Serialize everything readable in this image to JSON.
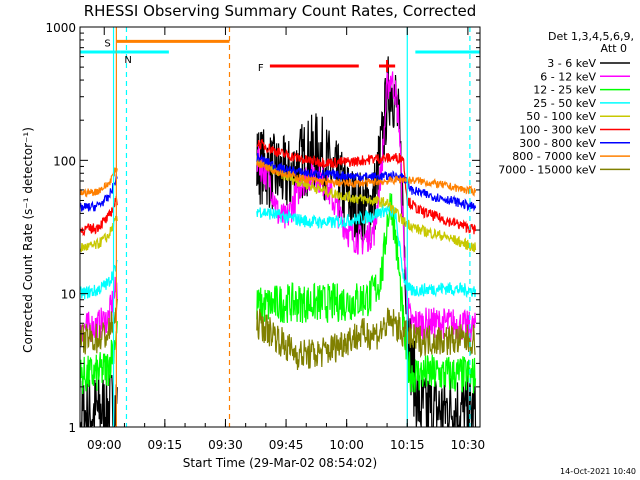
{
  "chart_data": {
    "type": "line",
    "title": "RHESSI Observing Summary Count Rates, Corrected",
    "xlabel": "Start Time (29-Mar-02 08:54:02)",
    "ylabel": "Corrected Count Rate (s⁻¹ detector⁻¹)",
    "x_unit": "minutes after 08:54:02",
    "x_ticks": [
      {
        "t": 6,
        "label": "09:00"
      },
      {
        "t": 21,
        "label": "09:15"
      },
      {
        "t": 36,
        "label": "09:30"
      },
      {
        "t": 51,
        "label": "09:45"
      },
      {
        "t": 66,
        "label": "10:00"
      },
      {
        "t": 81,
        "label": "10:15"
      },
      {
        "t": 96,
        "label": "10:30"
      }
    ],
    "xlim": [
      0,
      99
    ],
    "y_scale": "log",
    "ylim": [
      1,
      1000
    ],
    "y_ticks": [
      {
        "v": 1,
        "label": "1"
      },
      {
        "v": 10,
        "label": "10"
      },
      {
        "v": 100,
        "label": "100"
      },
      {
        "v": 1000,
        "label": "1000"
      }
    ],
    "legend": {
      "position": "right",
      "header": [
        "Det 1,3,4,5,6,9,",
        "Att 0"
      ]
    },
    "attenuator_state": {
      "segments": [
        [
          -4,
          9
        ],
        [
          10,
          22
        ],
        [
          83,
          103
        ]
      ],
      "level": 650,
      "color": "#00ffff"
    },
    "flags": [
      {
        "label": "S",
        "t0": 9,
        "t1": 37,
        "level": 780,
        "color": "#ff8000",
        "show_label": true
      },
      {
        "label": "N",
        "t0": 9,
        "t1": 10,
        "level": 650,
        "color": "#00ffff",
        "show_label": true
      },
      {
        "label": "F",
        "t0": 47,
        "t1": 69,
        "level": 510,
        "color": "#ff0000",
        "show_label": true
      },
      {
        "label": "F",
        "t0": 74,
        "t1": 78,
        "level": 510,
        "color": "#ff0000",
        "show_label": false
      }
    ],
    "vlines": [
      {
        "t": 9,
        "color": "#ff8000",
        "dash": false
      },
      {
        "t": 8.3,
        "color": "#00ffff",
        "dash": false
      },
      {
        "t": 11.5,
        "color": "#00ffff",
        "dash": true
      },
      {
        "t": 37,
        "color": "#ff8000",
        "dash": true
      },
      {
        "t": 81,
        "color": "#00ffff",
        "dash": false
      },
      {
        "t": 96.5,
        "color": "#00ffff",
        "dash": true
      }
    ],
    "series": [
      {
        "name": "3 - 6 keV",
        "color": "#000000",
        "points": [
          [
            -4,
            1.2
          ],
          [
            0,
            1.2
          ],
          [
            4,
            1.3
          ],
          [
            8,
            1.4
          ],
          [
            9,
            1.5
          ],
          [
            44,
            95
          ],
          [
            48,
            80
          ],
          [
            52,
            75
          ],
          [
            55,
            100
          ],
          [
            59,
            120
          ],
          [
            61,
            95
          ],
          [
            65,
            60
          ],
          [
            68,
            45
          ],
          [
            71,
            42
          ],
          [
            73,
            55
          ],
          [
            75,
            150
          ],
          [
            76,
            300
          ],
          [
            77,
            380
          ],
          [
            78,
            300
          ],
          [
            79,
            160
          ],
          [
            80,
            40
          ],
          [
            81,
            8
          ],
          [
            82,
            3
          ],
          [
            84,
            1.4
          ],
          [
            88,
            1.3
          ],
          [
            92,
            1.4
          ],
          [
            98,
            1.2
          ]
        ],
        "noise": 0.3
      },
      {
        "name": "6 - 12 keV",
        "color": "#ff00ff",
        "points": [
          [
            -4,
            5.5
          ],
          [
            0,
            5.5
          ],
          [
            4,
            5.7
          ],
          [
            7,
            6.5
          ],
          [
            9,
            11
          ],
          [
            44,
            100
          ],
          [
            47,
            70
          ],
          [
            49,
            40
          ],
          [
            51,
            35
          ],
          [
            53,
            50
          ],
          [
            55,
            70
          ],
          [
            58,
            80
          ],
          [
            61,
            65
          ],
          [
            64,
            40
          ],
          [
            67,
            27
          ],
          [
            70,
            25
          ],
          [
            73,
            30
          ],
          [
            75,
            120
          ],
          [
            76,
            350
          ],
          [
            77,
            420
          ],
          [
            78,
            330
          ],
          [
            79,
            190
          ],
          [
            80,
            30
          ],
          [
            81,
            8
          ],
          [
            82,
            6
          ],
          [
            86,
            6
          ],
          [
            92,
            6
          ],
          [
            98,
            5.5
          ]
        ],
        "noise": 0.12
      },
      {
        "name": "12 - 25 keV",
        "color": "#00ff00",
        "points": [
          [
            -4,
            2.4
          ],
          [
            0,
            2.4
          ],
          [
            4,
            2.5
          ],
          [
            7,
            2.8
          ],
          [
            9,
            5
          ],
          [
            44,
            8
          ],
          [
            50,
            8.5
          ],
          [
            56,
            8.5
          ],
          [
            62,
            8.5
          ],
          [
            68,
            8.8
          ],
          [
            72,
            9.5
          ],
          [
            74,
            12
          ],
          [
            75,
            16
          ],
          [
            76,
            35
          ],
          [
            77,
            50
          ],
          [
            78,
            28
          ],
          [
            79,
            14
          ],
          [
            80,
            6
          ],
          [
            81,
            3
          ],
          [
            82,
            2.5
          ],
          [
            90,
            2.5
          ],
          [
            98,
            2.4
          ]
        ],
        "noise": 0.15
      },
      {
        "name": "25 - 50 keV",
        "color": "#00ffff",
        "points": [
          [
            -4,
            10
          ],
          [
            0,
            10
          ],
          [
            4,
            10.5
          ],
          [
            7,
            12
          ],
          [
            9,
            16
          ],
          [
            44,
            42
          ],
          [
            50,
            38
          ],
          [
            56,
            35
          ],
          [
            62,
            34
          ],
          [
            68,
            36
          ],
          [
            72,
            38
          ],
          [
            75,
            42
          ],
          [
            76,
            42
          ],
          [
            78,
            40
          ],
          [
            80,
            14
          ],
          [
            81,
            11
          ],
          [
            82,
            10.5
          ],
          [
            90,
            11
          ],
          [
            98,
            10.5
          ]
        ],
        "noise": 0.05
      },
      {
        "name": "50 - 100 keV",
        "color": "#c8c800",
        "points": [
          [
            -4,
            22
          ],
          [
            0,
            22
          ],
          [
            4,
            23
          ],
          [
            7,
            27
          ],
          [
            9,
            36
          ],
          [
            44,
            100
          ],
          [
            50,
            78
          ],
          [
            56,
            66
          ],
          [
            62,
            57
          ],
          [
            68,
            52
          ],
          [
            72,
            50
          ],
          [
            76,
            48
          ],
          [
            80,
            35
          ],
          [
            84,
            30
          ],
          [
            90,
            27
          ],
          [
            98,
            22
          ]
        ],
        "noise": 0.04
      },
      {
        "name": "100 - 300 keV",
        "color": "#ff0000",
        "points": [
          [
            -4,
            30
          ],
          [
            0,
            30
          ],
          [
            4,
            31
          ],
          [
            7,
            37
          ],
          [
            9,
            50
          ],
          [
            44,
            135
          ],
          [
            50,
            112
          ],
          [
            56,
            100
          ],
          [
            62,
            96
          ],
          [
            68,
            98
          ],
          [
            72,
            102
          ],
          [
            76,
            104
          ],
          [
            80,
            105
          ],
          [
            81,
            50
          ],
          [
            84,
            42
          ],
          [
            90,
            36
          ],
          [
            98,
            30
          ]
        ],
        "noise": 0.04
      },
      {
        "name": "300 - 800 keV",
        "color": "#0000ff",
        "points": [
          [
            -4,
            44
          ],
          [
            0,
            44
          ],
          [
            4,
            45
          ],
          [
            7,
            52
          ],
          [
            9,
            73
          ],
          [
            44,
            105
          ],
          [
            50,
            86
          ],
          [
            56,
            80
          ],
          [
            62,
            78
          ],
          [
            68,
            76
          ],
          [
            72,
            75
          ],
          [
            76,
            76
          ],
          [
            80,
            76
          ],
          [
            82,
            60
          ],
          [
            86,
            55
          ],
          [
            92,
            50
          ],
          [
            98,
            44
          ]
        ],
        "noise": 0.035
      },
      {
        "name": "800 - 7000 keV",
        "color": "#ff8000",
        "points": [
          [
            -4,
            57
          ],
          [
            0,
            57
          ],
          [
            4,
            58
          ],
          [
            7,
            66
          ],
          [
            9,
            87
          ],
          [
            44,
            95
          ],
          [
            50,
            80
          ],
          [
            56,
            72
          ],
          [
            62,
            68
          ],
          [
            68,
            67
          ],
          [
            72,
            68
          ],
          [
            76,
            70
          ],
          [
            80,
            72
          ],
          [
            84,
            70
          ],
          [
            90,
            65
          ],
          [
            98,
            58
          ]
        ],
        "noise": 0.03
      },
      {
        "name": "7000 - 15000 keV",
        "color": "#808000",
        "points": [
          [
            -4,
            4.5
          ],
          [
            0,
            4.5
          ],
          [
            4,
            4.6
          ],
          [
            7,
            5
          ],
          [
            9,
            7
          ],
          [
            44,
            6
          ],
          [
            48,
            5
          ],
          [
            51,
            4
          ],
          [
            54,
            3.5
          ],
          [
            58,
            3.5
          ],
          [
            62,
            3.8
          ],
          [
            66,
            4.5
          ],
          [
            70,
            5
          ],
          [
            74,
            5
          ],
          [
            76,
            6
          ],
          [
            78,
            6
          ],
          [
            80,
            5
          ],
          [
            82,
            4.5
          ],
          [
            90,
            4.5
          ],
          [
            98,
            4.5
          ]
        ],
        "noise": 0.12
      }
    ],
    "gap": [
      9.3,
      43.7
    ],
    "timestamp": "14-Oct-2021 10:40"
  }
}
